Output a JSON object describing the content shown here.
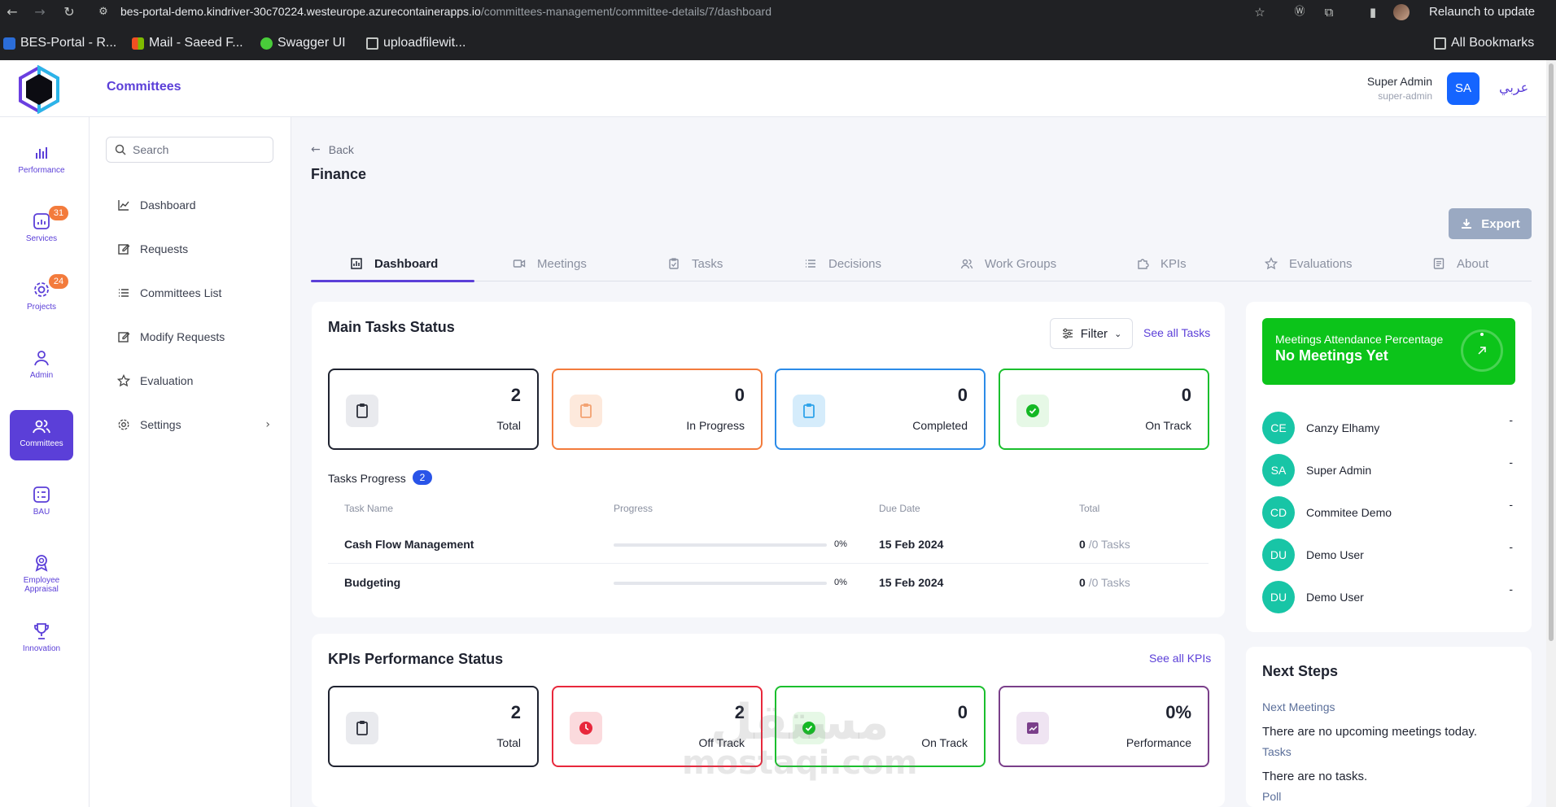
{
  "browser": {
    "url_host": "bes-portal-demo.kindriver-30c70224.westeurope.azurecontainerapps.io",
    "url_path": "/committees-management/committee-details/7/dashboard",
    "relaunch_label": "Relaunch to update",
    "bookmarks": [
      "BES-Portal - R...",
      "Mail - Saeed F...",
      "Swagger UI",
      "uploadfilewit..."
    ],
    "all_bookmarks": "All Bookmarks"
  },
  "header": {
    "title": "Committees",
    "user_name": "Super Admin",
    "user_role": "super-admin",
    "user_initials": "SA",
    "language": "عربي"
  },
  "rail": [
    {
      "label": "Performance",
      "icon": "bar-chart-icon",
      "badge": ""
    },
    {
      "label": "Services",
      "icon": "services-icon",
      "badge": "31"
    },
    {
      "label": "Projects",
      "icon": "gear-icon",
      "badge": "24"
    },
    {
      "label": "Admin",
      "icon": "user-icon",
      "badge": ""
    },
    {
      "label": "Committees",
      "icon": "users-icon",
      "badge": ""
    },
    {
      "label": "BAU",
      "icon": "bau-icon",
      "badge": ""
    },
    {
      "label": "Employee Appraisal",
      "icon": "badge-icon",
      "badge": ""
    },
    {
      "label": "Innovation",
      "icon": "trophy-icon",
      "badge": ""
    }
  ],
  "sidebar": {
    "search_placeholder": "Search",
    "items": [
      {
        "label": "Dashboard",
        "icon": "line-chart-icon"
      },
      {
        "label": "Requests",
        "icon": "edit-icon"
      },
      {
        "label": "Committees List",
        "icon": "list-icon"
      },
      {
        "label": "Modify Requests",
        "icon": "edit-icon"
      },
      {
        "label": "Evaluation",
        "icon": "star-icon"
      },
      {
        "label": "Settings",
        "icon": "gear-icon"
      }
    ]
  },
  "page": {
    "back_label": "Back",
    "title": "Finance",
    "export_label": "Export"
  },
  "tabs": [
    "Dashboard",
    "Meetings",
    "Tasks",
    "Decisions",
    "Work Groups",
    "KPIs",
    "Evaluations",
    "About"
  ],
  "tasks": {
    "title": "Main Tasks Status",
    "filter_label": "Filter",
    "see_all": "See all Tasks",
    "stats": [
      {
        "value": "2",
        "label": "Total",
        "color": "#1f2330"
      },
      {
        "value": "0",
        "label": "In Progress",
        "color": "#f37b3c"
      },
      {
        "value": "0",
        "label": "Completed",
        "color": "#2b8be8"
      },
      {
        "value": "0",
        "label": "On Track",
        "color": "#1bbf2e"
      }
    ],
    "progress_label": "Tasks Progress",
    "progress_count": "2",
    "columns": [
      "Task Name",
      "Progress",
      "Due Date",
      "Total"
    ],
    "rows": [
      {
        "name": "Cash Flow Management",
        "progress": "0%",
        "due": "15 Feb 2024",
        "done": "0",
        "total": "/0 Tasks"
      },
      {
        "name": "Budgeting",
        "progress": "0%",
        "due": "15 Feb 2024",
        "done": "0",
        "total": "/0 Tasks"
      }
    ]
  },
  "kpis": {
    "title": "KPIs Performance Status",
    "see_all": "See all KPIs",
    "stats": [
      {
        "value": "2",
        "label": "Total",
        "color": "#1f2330"
      },
      {
        "value": "2",
        "label": "Off Track",
        "color": "#e8283c"
      },
      {
        "value": "0",
        "label": "On Track",
        "color": "#1bbf2e"
      },
      {
        "value": "0%",
        "label": "Performance",
        "color": "#7a3f8a"
      }
    ]
  },
  "attendance": {
    "subtitle": "Meetings Attendance Percentage",
    "main": "No Meetings Yet",
    "members": [
      {
        "initials": "CE",
        "name": "Canzy Elhamy",
        "value": "-"
      },
      {
        "initials": "SA",
        "name": "Super Admin",
        "value": "-"
      },
      {
        "initials": "CD",
        "name": "Commitee Demo",
        "value": "-"
      },
      {
        "initials": "DU",
        "name": "Demo User",
        "value": "-"
      },
      {
        "initials": "DU",
        "name": "Demo User",
        "value": "-"
      }
    ]
  },
  "next_steps": {
    "title": "Next Steps",
    "meetings_label": "Next Meetings",
    "meetings_text": "There are no upcoming meetings today.",
    "tasks_label": "Tasks",
    "tasks_text": "There are no tasks.",
    "poll_label": "Poll"
  },
  "watermark": {
    "line1": "مستقل",
    "line2": "mostaqi.com"
  }
}
